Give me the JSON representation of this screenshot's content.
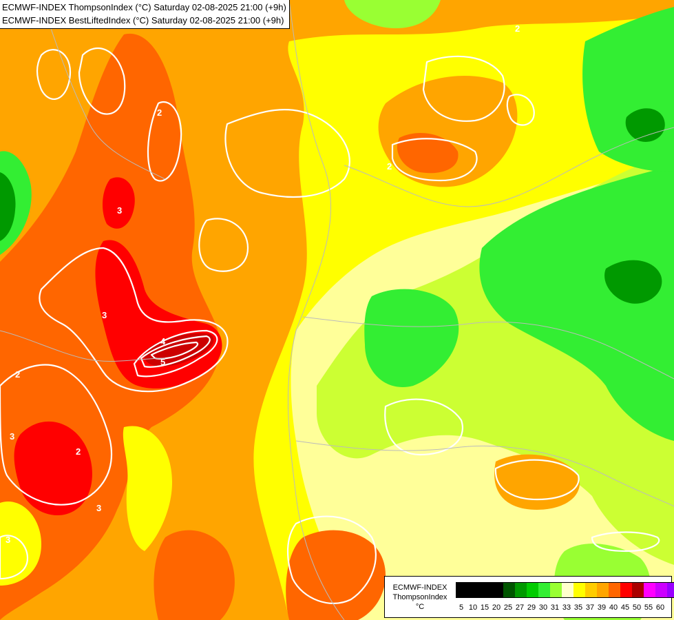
{
  "titles": [
    "ECMWF-INDEX ThompsonIndex (°C) Saturday 02-08-2025 21:00 (+9h)",
    "ECMWF-INDEX BestLiftedIndex (°C) Saturday 02-08-2025 21:00 (+9h)"
  ],
  "legend": {
    "model": "ECMWF-INDEX",
    "parameter": "ThompsonIndex",
    "unit": "°C",
    "colors": [
      "#000000",
      "#000000",
      "#000000",
      "#000000",
      "#005500",
      "#009900",
      "#00cc00",
      "#33ee33",
      "#99ff33",
      "#ffffcc",
      "#ffff00",
      "#ffcc00",
      "#ffa500",
      "#ff6600",
      "#ff0000",
      "#aa0000",
      "#ff00ff",
      "#cc00ff",
      "#9900ff",
      "#6600ff",
      "#0000ff"
    ],
    "ticks": [
      "5",
      "10",
      "15",
      "20",
      "25",
      "27",
      "29",
      "30",
      "31",
      "33",
      "35",
      "37",
      "39",
      "40",
      "45",
      "50",
      "55",
      "60"
    ]
  },
  "map_contours": {
    "white_labels": [
      "2",
      "2",
      "3",
      "3",
      "4",
      "5",
      "2",
      "3",
      "3",
      "3",
      "2",
      "2"
    ]
  }
}
